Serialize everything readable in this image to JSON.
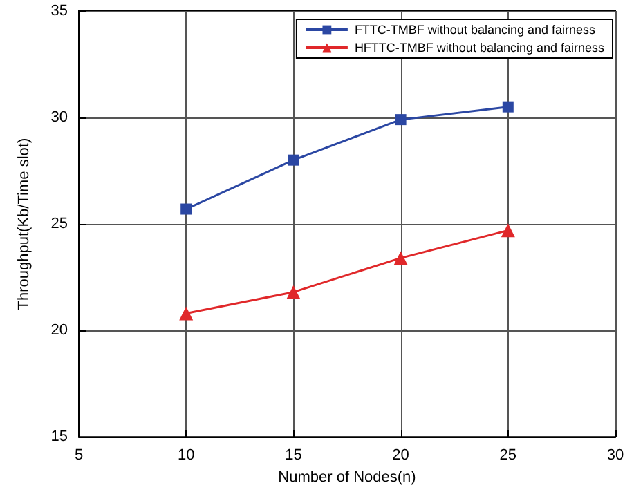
{
  "chart_data": {
    "type": "line",
    "xlabel": "Number of Nodes(n)",
    "ylabel": "Throughput(Kb/Time slot)",
    "x": [
      10,
      15,
      20,
      25
    ],
    "series": [
      {
        "name": "FTTC-TMBF without balancing and fairness",
        "color": "#2b47a3",
        "marker": "square",
        "values": [
          25.7,
          28.0,
          29.9,
          30.5
        ]
      },
      {
        "name": "HFTTC-TMBF without balancing and fairness",
        "color": "#e0282a",
        "marker": "triangle",
        "values": [
          20.8,
          21.8,
          23.4,
          24.7
        ]
      }
    ],
    "xlim": [
      5,
      30
    ],
    "xticks": [
      5,
      10,
      15,
      20,
      25,
      30
    ],
    "ylim": [
      15,
      35
    ],
    "yticks": [
      15,
      20,
      25,
      30,
      35
    ],
    "grid": true,
    "legend": "top right",
    "line_style": "solid"
  }
}
